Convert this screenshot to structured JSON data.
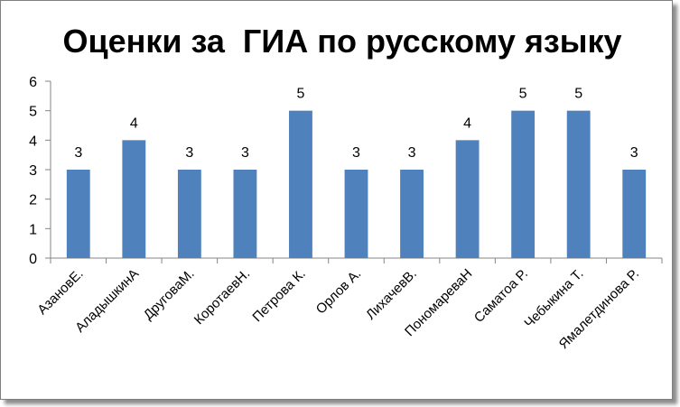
{
  "chart_data": {
    "type": "bar",
    "title": "Оценки за  ГИА по русскому языку",
    "xlabel": "",
    "ylabel": "",
    "categories": [
      "АзановЕ.",
      "АладышкинА",
      "ДруговаМ.",
      "КоротаевН.",
      "Петрова К.",
      "Орлов А.",
      "ЛихачевВ.",
      "ПономареваН",
      "Саматоа Р.",
      "Чебыкина Т.",
      "Ямалетдинова Р."
    ],
    "values": [
      3,
      4,
      3,
      3,
      5,
      3,
      3,
      4,
      5,
      5,
      3
    ],
    "ylim": [
      0,
      6
    ],
    "yticks": [
      0,
      1,
      2,
      3,
      4,
      5,
      6
    ],
    "grid": false,
    "legend": "none",
    "bar_color": "#4f81bd",
    "data_labels": true
  }
}
